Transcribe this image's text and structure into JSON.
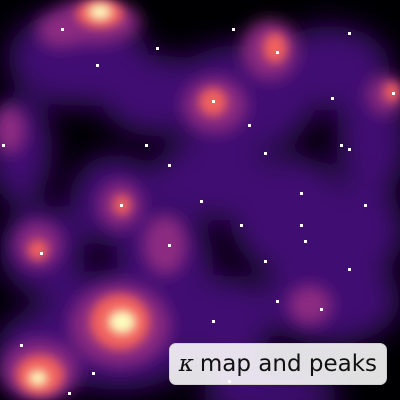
{
  "legend": {
    "symbol": "κ",
    "text": "map and peaks"
  },
  "colormap": "magma",
  "peak_marker_color": "#ffffff"
}
